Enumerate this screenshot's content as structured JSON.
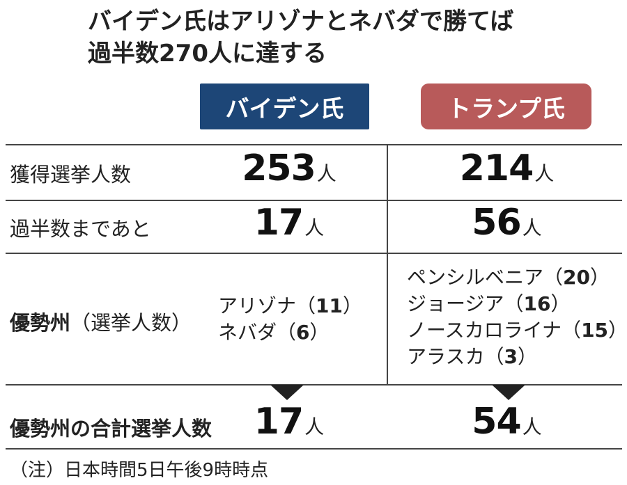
{
  "title": {
    "line1": "バイデン氏はアリゾナとネバダで勝てば",
    "line2": "過半数270人に達する"
  },
  "columns": {
    "biden": {
      "label": "バイデン氏",
      "color": "#1d4677"
    },
    "trump": {
      "label": "トランプ氏",
      "color": "#b85a5a"
    }
  },
  "rows": {
    "votes": {
      "label": "獲得選挙人数",
      "biden": "253",
      "trump": "214",
      "unit": "人"
    },
    "remaining": {
      "label": "過半数まであと",
      "biden": "17",
      "trump": "56",
      "unit": "人"
    },
    "leading": {
      "label_bold": "優勢州",
      "label_paren": "（選挙人数）",
      "biden_states": [
        {
          "name": "アリゾナ",
          "open": "（",
          "num": "11",
          "close": "）"
        },
        {
          "name": "ネバダ",
          "open": "（",
          "num": "6",
          "close": "）"
        }
      ],
      "trump_states": [
        {
          "name": "ペンシルベニア",
          "open": "（",
          "num": "20",
          "close": "）"
        },
        {
          "name": "ジョージア",
          "open": "（",
          "num": "16",
          "close": "）"
        },
        {
          "name": "ノースカロライナ",
          "open": "（",
          "num": "15",
          "close": "）"
        },
        {
          "name": "アラスカ",
          "open": "（",
          "num": "3",
          "close": "）"
        }
      ]
    },
    "total": {
      "label": "優勢州の合計選挙人数",
      "biden": "17",
      "trump": "54",
      "unit": "人"
    }
  },
  "note": "（注）日本時間5日午後9時時点"
}
